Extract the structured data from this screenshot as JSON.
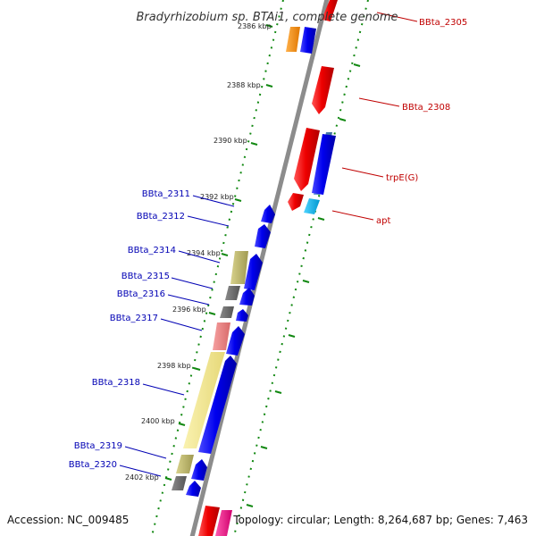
{
  "title": "Bradyrhizobium sp. BTAi1, complete genome",
  "accession": "Accession: NC_009485",
  "topology": "Topology: circular; Length: 8,264,687 bp; Genes: 7,463",
  "colors": {
    "backbone": "#8c8c8c",
    "left_label": "#0000b4",
    "right_label": "#c00000",
    "scale_dash": "#118811"
  },
  "scale_ticks": [
    {
      "label": "2386 kbp",
      "partial": true
    },
    {
      "label": "2388 kbp"
    },
    {
      "label": "2390 kbp"
    },
    {
      "label": "2392 kbp"
    },
    {
      "label": "2394 kbp"
    },
    {
      "label": "2396 kbp"
    },
    {
      "label": "2398 kbp"
    },
    {
      "label": "2400 kbp"
    },
    {
      "label": "2402 kbp"
    }
  ],
  "forward_genes": [
    {
      "name": "BBta_2305",
      "color": "#ee0000",
      "icon": "arrow-down"
    },
    {
      "name": "BBta_2308",
      "color": "#ee0000",
      "icon": "arrow-down"
    },
    {
      "name": "trpE(G)",
      "color": "#ee0000",
      "icon": "arrow-down"
    },
    {
      "name": "apt",
      "color": "#ee0000",
      "icon": "arrow-down"
    }
  ],
  "reverse_genes": [
    {
      "name": "BBta_2311",
      "color": "#0000ee",
      "icon": "arrow-up"
    },
    {
      "name": "BBta_2312",
      "color": "#0000ee",
      "icon": "arrow-up"
    },
    {
      "name": "BBta_2314",
      "color": "#0000ee",
      "icon": "arrow-up"
    },
    {
      "name": "BBta_2315",
      "color": "#0000ee",
      "icon": "arrow-up"
    },
    {
      "name": "BBta_2316",
      "color": "#0000ee",
      "icon": "arrow-up"
    },
    {
      "name": "BBta_2317",
      "color": "#0000ee",
      "icon": "arrow-up"
    },
    {
      "name": "BBta_2318",
      "color": "#0000ee",
      "icon": "arrow-up"
    },
    {
      "name": "BBta_2319",
      "color": "#0000ee",
      "icon": "arrow-up"
    },
    {
      "name": "BBta_2320",
      "color": "#0000ee",
      "icon": "arrow-up"
    }
  ],
  "cog_colors": [
    "#ff8c00",
    "#bdb76b",
    "#696969",
    "#f08080",
    "#f0e68c",
    "#00bfff",
    "#4682b4",
    "#ff1493"
  ]
}
